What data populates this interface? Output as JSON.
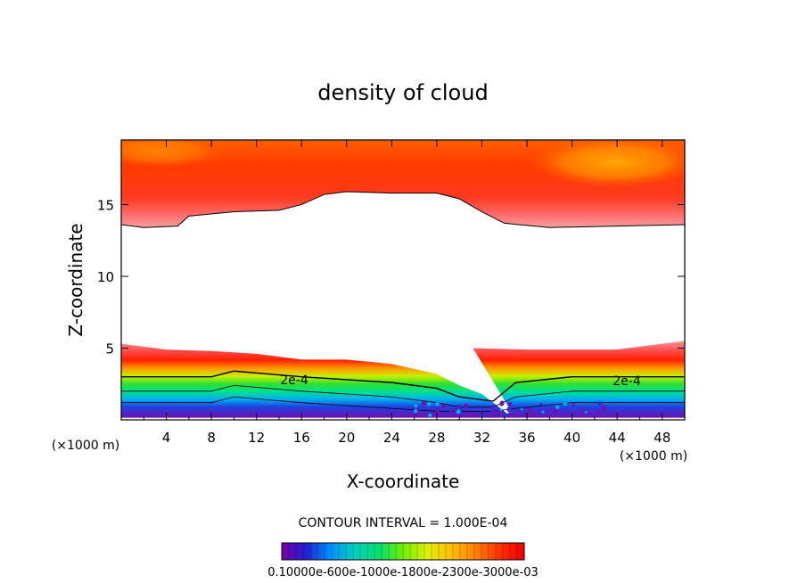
{
  "chart_data": {
    "type": "heatmap",
    "title": "density of cloud",
    "xlabel": "X-coordinate",
    "ylabel": "Z-coordinate",
    "x_unit": "(×1000 m)",
    "z_unit": "(×1000 m)",
    "xlim": [
      0,
      50
    ],
    "ylim": [
      0,
      19.5
    ],
    "x_ticks": [
      4,
      8,
      12,
      16,
      20,
      24,
      28,
      32,
      36,
      40,
      44,
      48
    ],
    "y_ticks": [
      5,
      10,
      15
    ],
    "contour_interval_text": "CONTOUR INTERVAL = 1.000E-04",
    "contour_labels": [
      "2e-4",
      "2e-4"
    ],
    "colorbar": {
      "labels_text": "0.10000e-600e-1000e-1800e-2300e-3000e-03",
      "colors": [
        "#7a00a8",
        "#2020d0",
        "#0090ff",
        "#00d0c0",
        "#00e070",
        "#70f000",
        "#e0f000",
        "#ffc000",
        "#ff8000",
        "#ff3000",
        "#f00000"
      ]
    },
    "upper_layer": {
      "base_z": [
        [
          0,
          13.6
        ],
        [
          2,
          13.4
        ],
        [
          5,
          13.5
        ],
        [
          6,
          14.2
        ],
        [
          10,
          14.5
        ],
        [
          14,
          14.6
        ],
        [
          16,
          15.0
        ],
        [
          18,
          15.7
        ],
        [
          20,
          15.9
        ],
        [
          24,
          15.8
        ],
        [
          28,
          15.8
        ],
        [
          30,
          15.4
        ],
        [
          32,
          14.5
        ],
        [
          34,
          13.7
        ],
        [
          38,
          13.4
        ],
        [
          44,
          13.5
        ],
        [
          50,
          13.6
        ]
      ],
      "colors": [
        "#f8a0a0",
        "#ff6060",
        "#ff3c10",
        "#ff5a00",
        "#ff8a00",
        "#ffa800"
      ]
    },
    "lower_layer": {
      "top_z": [
        [
          0,
          5.3
        ],
        [
          4,
          4.9
        ],
        [
          8,
          4.8
        ],
        [
          12,
          4.6
        ],
        [
          16,
          4.2
        ],
        [
          20,
          4.2
        ],
        [
          24,
          3.9
        ],
        [
          28,
          3.2
        ],
        [
          30,
          2.4
        ],
        [
          32,
          1.8
        ],
        [
          33,
          1.2
        ],
        [
          34,
          0.6
        ],
        [
          31.2,
          5.0
        ],
        [
          36,
          4.9
        ],
        [
          44,
          4.9
        ],
        [
          48,
          5.3
        ],
        [
          50,
          5.5
        ]
      ],
      "contour_2e4_z": [
        [
          0,
          3.0
        ],
        [
          8,
          3.0
        ],
        [
          10,
          3.4
        ],
        [
          16,
          3.0
        ],
        [
          24,
          2.6
        ],
        [
          28,
          2.2
        ],
        [
          30,
          1.6
        ],
        [
          33,
          1.3
        ],
        [
          35,
          2.6
        ],
        [
          40,
          3.0
        ],
        [
          50,
          3.0
        ]
      ]
    }
  }
}
